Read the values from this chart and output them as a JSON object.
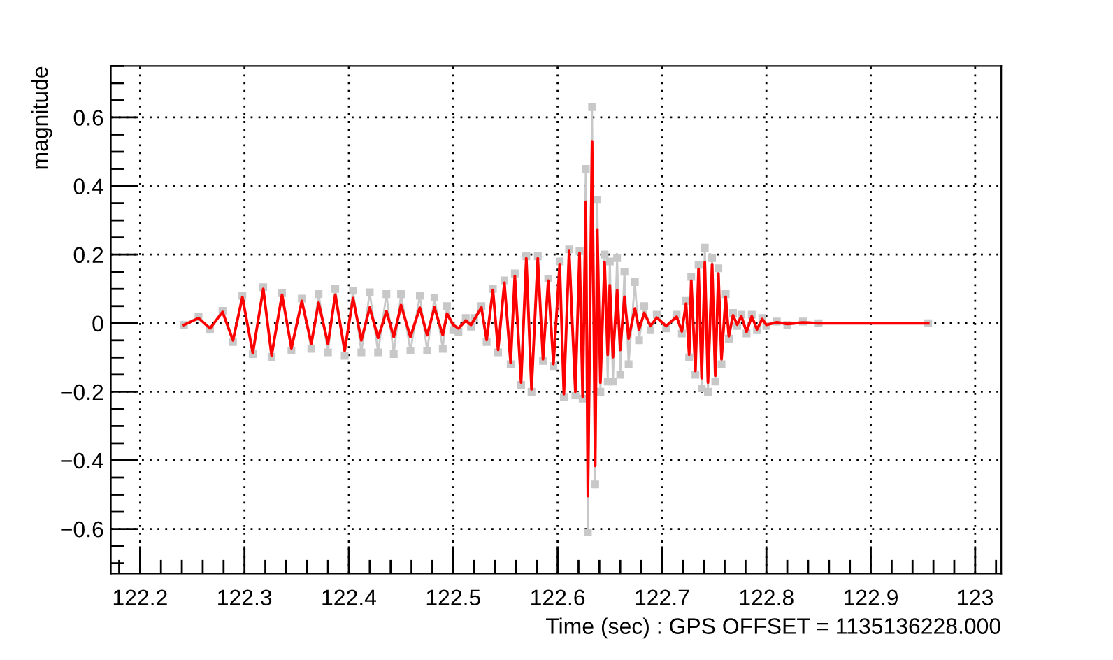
{
  "chart_data": {
    "type": "line",
    "xlabel": "Time (sec) : GPS OFFSET = 1135136228.000",
    "ylabel": "magnitude",
    "xlim": [
      122.172,
      123.025
    ],
    "ylim": [
      -0.73,
      0.75
    ],
    "xticks": [
      {
        "value": 122.2,
        "label": "122.2"
      },
      {
        "value": 122.3,
        "label": "122.3"
      },
      {
        "value": 122.4,
        "label": "122.4"
      },
      {
        "value": 122.5,
        "label": "122.5"
      },
      {
        "value": 122.6,
        "label": "122.6"
      },
      {
        "value": 122.7,
        "label": "122.7"
      },
      {
        "value": 122.8,
        "label": "122.8"
      },
      {
        "value": 122.9,
        "label": "122.9"
      },
      {
        "value": 123,
        "label": "123"
      }
    ],
    "yticks": [
      {
        "value": -0.6,
        "label": "−0.6"
      },
      {
        "value": -0.4,
        "label": "−0.4"
      },
      {
        "value": -0.2,
        "label": "−0.2"
      },
      0,
      0.2,
      0.4,
      0.6
    ],
    "grid": true,
    "line_style": "solid",
    "series": [
      {
        "color": "#c8c8c8",
        "marker": "square",
        "x": [
          122.242,
          122.256,
          122.267,
          122.279,
          122.289,
          122.298,
          122.308,
          122.318,
          122.326,
          122.336,
          122.345,
          122.355,
          122.364,
          122.371,
          122.38,
          122.387,
          122.396,
          122.404,
          122.412,
          122.42,
          122.428,
          122.436,
          122.443,
          122.45,
          122.459,
          122.468,
          122.475,
          122.482,
          122.49,
          122.494,
          122.5,
          122.505,
          122.512,
          122.517,
          122.52,
          122.527,
          122.532,
          122.538,
          122.543,
          122.549,
          122.555,
          122.559,
          122.565,
          122.57,
          122.575,
          122.581,
          122.586,
          122.591,
          122.596,
          122.602,
          122.606,
          122.611,
          122.617,
          122.621,
          122.624,
          122.627,
          122.629,
          122.633,
          122.636,
          122.638,
          122.641,
          122.645,
          122.648,
          122.65,
          122.653,
          122.657,
          122.66,
          122.664,
          122.668,
          122.674,
          122.678,
          122.683,
          122.689,
          122.695,
          122.704,
          122.714,
          122.719,
          122.723,
          122.726,
          122.728,
          122.732,
          122.735,
          122.738,
          122.741,
          122.744,
          122.748,
          122.751,
          122.754,
          122.757,
          122.761,
          122.764,
          122.768,
          122.772,
          122.776,
          122.781,
          122.786,
          122.791,
          122.796,
          122.8,
          122.81,
          122.82,
          122.835,
          122.85,
          122.955
        ],
        "values": [
          -0.005,
          0.018,
          -0.018,
          0.036,
          -0.055,
          0.08,
          -0.09,
          0.105,
          -0.098,
          0.088,
          -0.08,
          0.072,
          -0.075,
          0.085,
          -0.085,
          0.1,
          -0.095,
          0.095,
          -0.085,
          0.09,
          -0.085,
          0.085,
          -0.09,
          0.085,
          -0.08,
          0.08,
          -0.08,
          0.075,
          -0.075,
          0.05,
          -0.02,
          -0.025,
          0.015,
          -0.01,
          0.015,
          0.05,
          -0.055,
          0.1,
          -0.085,
          0.125,
          -0.12,
          0.145,
          -0.18,
          0.195,
          -0.2,
          0.195,
          -0.11,
          0.13,
          -0.125,
          0.18,
          -0.215,
          0.215,
          -0.21,
          0.21,
          -0.22,
          0.45,
          -0.61,
          0.63,
          -0.47,
          0.36,
          -0.2,
          0.2,
          -0.17,
          0.18,
          -0.17,
          0.19,
          -0.15,
          0.15,
          -0.12,
          0.12,
          -0.05,
          0.05,
          -0.02,
          0.025,
          -0.015,
          0.025,
          -0.03,
          0.065,
          -0.1,
          0.135,
          -0.15,
          0.17,
          -0.19,
          0.22,
          -0.2,
          0.19,
          -0.17,
          0.16,
          -0.12,
          0.085,
          -0.045,
          0.03,
          -0.008,
          0.025,
          -0.03,
          0.025,
          -0.02,
          0.015,
          -0.008,
          0.005,
          -0.005,
          0.005,
          0,
          0
        ]
      },
      {
        "color": "#ff0000",
        "marker": "none",
        "x": [
          122.242,
          122.256,
          122.267,
          122.279,
          122.289,
          122.298,
          122.308,
          122.318,
          122.326,
          122.336,
          122.345,
          122.355,
          122.364,
          122.371,
          122.38,
          122.387,
          122.396,
          122.404,
          122.412,
          122.42,
          122.428,
          122.436,
          122.443,
          122.45,
          122.459,
          122.468,
          122.475,
          122.482,
          122.49,
          122.494,
          122.5,
          122.505,
          122.512,
          122.517,
          122.52,
          122.527,
          122.532,
          122.538,
          122.543,
          122.549,
          122.555,
          122.559,
          122.565,
          122.57,
          122.575,
          122.581,
          122.586,
          122.591,
          122.596,
          122.602,
          122.606,
          122.611,
          122.617,
          122.621,
          122.624,
          122.627,
          122.629,
          122.633,
          122.636,
          122.638,
          122.641,
          122.645,
          122.648,
          122.65,
          122.653,
          122.657,
          122.66,
          122.664,
          122.668,
          122.674,
          122.678,
          122.683,
          122.689,
          122.695,
          122.704,
          122.714,
          122.719,
          122.723,
          122.726,
          122.728,
          122.732,
          122.735,
          122.738,
          122.741,
          122.744,
          122.748,
          122.751,
          122.754,
          122.757,
          122.761,
          122.764,
          122.768,
          122.772,
          122.776,
          122.781,
          122.786,
          122.791,
          122.796,
          122.8,
          122.81,
          122.82,
          122.835,
          122.85,
          122.955
        ],
        "values": [
          -0.005,
          0.015,
          -0.015,
          0.033,
          -0.05,
          0.076,
          -0.087,
          0.1,
          -0.094,
          0.083,
          -0.073,
          0.065,
          -0.06,
          0.06,
          -0.06,
          0.083,
          -0.08,
          0.073,
          -0.05,
          0.046,
          -0.043,
          0.035,
          -0.04,
          0.053,
          -0.04,
          0.045,
          -0.035,
          0.046,
          -0.035,
          0.028,
          -0.005,
          -0.015,
          0.008,
          -0.005,
          0.01,
          0.046,
          -0.049,
          0.097,
          -0.078,
          0.118,
          -0.116,
          0.138,
          -0.173,
          0.189,
          -0.193,
          0.189,
          -0.105,
          0.124,
          -0.119,
          0.172,
          -0.207,
          0.212,
          -0.2,
          0.205,
          -0.214,
          0.354,
          -0.504,
          0.53,
          -0.416,
          0.273,
          -0.173,
          0.178,
          -0.092,
          0.111,
          -0.099,
          0.097,
          -0.078,
          0.077,
          -0.045,
          0.043,
          -0.018,
          0.03,
          -0.008,
          0.016,
          -0.008,
          0.019,
          -0.024,
          0.057,
          -0.092,
          0.124,
          -0.139,
          0.158,
          -0.16,
          0.178,
          -0.173,
          0.172,
          -0.153,
          0.145,
          -0.105,
          0.077,
          -0.038,
          0.023,
          -0.004,
          0.02,
          -0.025,
          0.02,
          -0.018,
          0.012,
          -0.005,
          0.003,
          -0.002,
          0.002,
          0,
          0
        ]
      }
    ]
  }
}
